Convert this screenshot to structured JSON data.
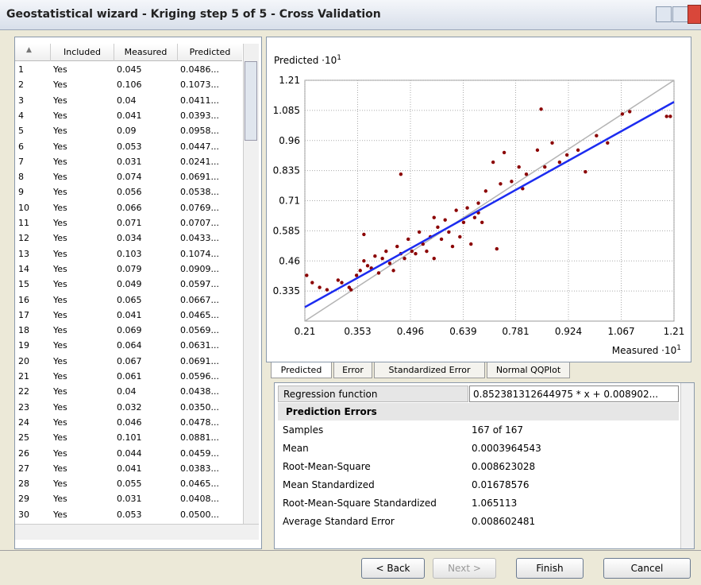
{
  "window": {
    "title": "Geostatistical wizard - Kriging step 5 of 5 - Cross Validation"
  },
  "table": {
    "columns": [
      "Included",
      "Measured",
      "Predicted"
    ],
    "rows": [
      [
        "1",
        "Yes",
        "0.045",
        "0.0486..."
      ],
      [
        "2",
        "Yes",
        "0.106",
        "0.1073..."
      ],
      [
        "3",
        "Yes",
        "0.04",
        "0.0411..."
      ],
      [
        "4",
        "Yes",
        "0.041",
        "0.0393..."
      ],
      [
        "5",
        "Yes",
        "0.09",
        "0.0958..."
      ],
      [
        "6",
        "Yes",
        "0.053",
        "0.0447..."
      ],
      [
        "7",
        "Yes",
        "0.031",
        "0.0241..."
      ],
      [
        "8",
        "Yes",
        "0.074",
        "0.0691..."
      ],
      [
        "9",
        "Yes",
        "0.056",
        "0.0538..."
      ],
      [
        "10",
        "Yes",
        "0.066",
        "0.0769..."
      ],
      [
        "11",
        "Yes",
        "0.071",
        "0.0707..."
      ],
      [
        "12",
        "Yes",
        "0.034",
        "0.0433..."
      ],
      [
        "13",
        "Yes",
        "0.103",
        "0.1074..."
      ],
      [
        "14",
        "Yes",
        "0.079",
        "0.0909..."
      ],
      [
        "15",
        "Yes",
        "0.049",
        "0.0597..."
      ],
      [
        "16",
        "Yes",
        "0.065",
        "0.0667..."
      ],
      [
        "17",
        "Yes",
        "0.041",
        "0.0465..."
      ],
      [
        "18",
        "Yes",
        "0.069",
        "0.0569..."
      ],
      [
        "19",
        "Yes",
        "0.064",
        "0.0631..."
      ],
      [
        "20",
        "Yes",
        "0.067",
        "0.0691..."
      ],
      [
        "21",
        "Yes",
        "0.061",
        "0.0596..."
      ],
      [
        "22",
        "Yes",
        "0.04",
        "0.0438..."
      ],
      [
        "23",
        "Yes",
        "0.032",
        "0.0350..."
      ],
      [
        "24",
        "Yes",
        "0.046",
        "0.0478..."
      ],
      [
        "25",
        "Yes",
        "0.101",
        "0.0881..."
      ],
      [
        "26",
        "Yes",
        "0.044",
        "0.0459..."
      ],
      [
        "27",
        "Yes",
        "0.041",
        "0.0383..."
      ],
      [
        "28",
        "Yes",
        "0.055",
        "0.0465..."
      ],
      [
        "29",
        "Yes",
        "0.031",
        "0.0408..."
      ],
      [
        "30",
        "Yes",
        "0.053",
        "0.0500..."
      ]
    ]
  },
  "chart_data": {
    "type": "scatter",
    "y_label": "Predicted ·10",
    "y_label_exponent": "1",
    "x_label": "Measured ·10",
    "x_label_exponent": "1",
    "xlim": [
      0.21,
      1.21
    ],
    "ylim": [
      0.21,
      1.21
    ],
    "xticks": [
      0.21,
      0.353,
      0.496,
      0.639,
      0.781,
      0.924,
      1.067,
      1.21
    ],
    "yticks": [
      0.335,
      0.46,
      0.585,
      0.71,
      0.835,
      0.96,
      1.085,
      1.21
    ],
    "grid": true,
    "color": "#8b0000",
    "x": [
      0.215,
      0.23,
      0.25,
      0.27,
      0.3,
      0.31,
      0.33,
      0.335,
      0.35,
      0.36,
      0.37,
      0.38,
      0.37,
      0.39,
      0.4,
      0.41,
      0.42,
      0.43,
      0.44,
      0.45,
      0.46,
      0.47,
      0.48,
      0.49,
      0.5,
      0.51,
      0.52,
      0.53,
      0.54,
      0.55,
      0.56,
      0.57,
      0.58,
      0.59,
      0.6,
      0.61,
      0.62,
      0.63,
      0.64,
      0.65,
      0.66,
      0.67,
      0.68,
      0.69,
      0.7,
      0.72,
      0.73,
      0.74,
      0.75,
      0.77,
      0.79,
      0.8,
      0.81,
      0.84,
      0.85,
      0.86,
      0.88,
      0.9,
      0.92,
      0.95,
      0.97,
      1.0,
      1.03,
      1.07,
      1.09,
      1.19,
      1.2,
      0.47,
      0.68,
      0.56
    ],
    "y": [
      0.4,
      0.37,
      0.35,
      0.34,
      0.38,
      0.37,
      0.35,
      0.34,
      0.4,
      0.42,
      0.46,
      0.44,
      0.57,
      0.43,
      0.48,
      0.41,
      0.47,
      0.5,
      0.45,
      0.42,
      0.52,
      0.49,
      0.47,
      0.55,
      0.5,
      0.49,
      0.58,
      0.53,
      0.5,
      0.56,
      0.47,
      0.6,
      0.55,
      0.63,
      0.58,
      0.52,
      0.67,
      0.56,
      0.62,
      0.68,
      0.53,
      0.64,
      0.7,
      0.62,
      0.75,
      0.87,
      0.51,
      0.78,
      0.91,
      0.79,
      0.85,
      0.76,
      0.82,
      0.92,
      1.09,
      0.85,
      0.95,
      0.87,
      0.9,
      0.92,
      0.83,
      0.98,
      0.95,
      1.07,
      1.08,
      1.06,
      1.06,
      0.82,
      0.66,
      0.64
    ],
    "reference_line": {
      "x": [
        0.21,
        1.21
      ],
      "y": [
        0.21,
        1.21
      ],
      "color": "#b4b4b4"
    },
    "regression_line": {
      "x": [
        0.21,
        1.21
      ],
      "y": [
        0.268,
        1.12
      ],
      "color": "#1c2cf0"
    }
  },
  "tabs": [
    "Predicted",
    "Error",
    "Standardized Error",
    "Normal QQPlot"
  ],
  "properties": {
    "regression": [
      "Regression function",
      "0.852381312644975 * x + 0.008902..."
    ],
    "section": "Prediction Errors",
    "rows": [
      [
        "Samples",
        "167 of 167"
      ],
      [
        "Mean",
        "0.0003964543"
      ],
      [
        "Root-Mean-Square",
        "0.008623028"
      ],
      [
        "Mean Standardized",
        "0.01678576"
      ],
      [
        "Root-Mean-Square Standardized",
        "1.065113"
      ],
      [
        "Average Standard Error",
        "0.008602481"
      ]
    ]
  },
  "buttons": [
    "< Back",
    "Next >",
    "Finish",
    "Cancel"
  ]
}
